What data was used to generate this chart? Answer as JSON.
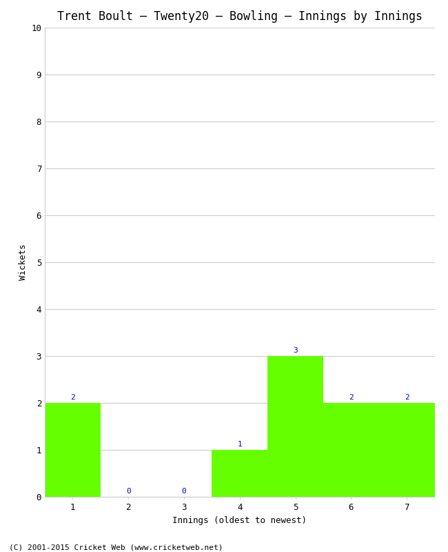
{
  "title": "Trent Boult – Twenty20 – Bowling – Innings by Innings",
  "xlabel": "Innings (oldest to newest)",
  "ylabel": "Wickets",
  "categories": [
    "1",
    "2",
    "3",
    "4",
    "5",
    "6",
    "7"
  ],
  "values": [
    2,
    0,
    0,
    1,
    3,
    2,
    2
  ],
  "bar_color": "#66ff00",
  "annotation_color": "#0000cc",
  "ylim": [
    0,
    10
  ],
  "yticks": [
    0,
    1,
    2,
    3,
    4,
    5,
    6,
    7,
    8,
    9,
    10
  ],
  "title_fontsize": 12,
  "axis_label_fontsize": 9,
  "tick_fontsize": 9,
  "annotation_fontsize": 8,
  "footer_text": "(C) 2001-2015 Cricket Web (www.cricketweb.net)",
  "footer_fontsize": 8,
  "background_color": "#ffffff",
  "grid_color": "#cccccc",
  "font_family": "monospace"
}
